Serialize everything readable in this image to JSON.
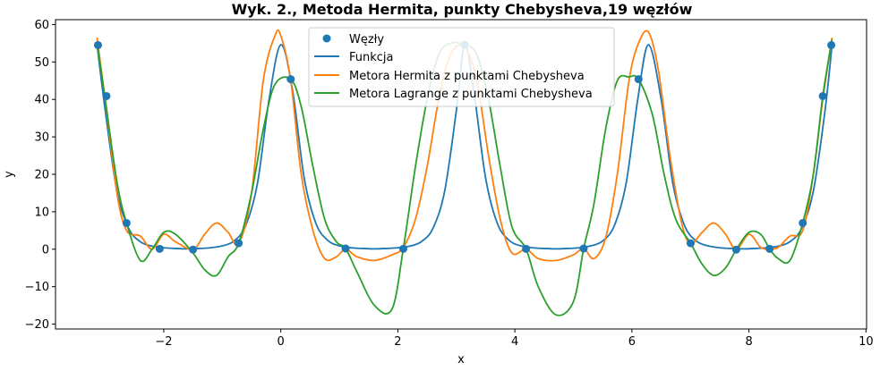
{
  "chart_data": {
    "type": "line",
    "title": "Wyk. 2., Metoda Hermita, punkty Chebysheva,19 węzłów",
    "xlabel": "x",
    "ylabel": "y",
    "xlim": [
      -3.85,
      10.01
    ],
    "ylim": [
      -21.3,
      61.3
    ],
    "xticks": [
      -2,
      0,
      2,
      4,
      6,
      8,
      10
    ],
    "yticks": [
      -20,
      -10,
      0,
      10,
      20,
      30,
      40,
      50,
      60
    ],
    "grid": false,
    "legend_position": "upper center",
    "colors": {
      "nodes": "#1f77b4",
      "funkcja": "#1f77b4",
      "hermite": "#ff7f0e",
      "lagrange": "#2ca02c"
    },
    "scatter": {
      "name": "Węzły",
      "x": [
        -3.124,
        -2.979,
        -2.636,
        -2.07,
        -1.5,
        -0.72,
        0.17,
        1.107,
        2.093,
        3.142,
        4.19,
        5.176,
        6.113,
        7.003,
        7.783,
        8.353,
        8.919,
        9.262,
        9.407
      ],
      "y": [
        54.5,
        40.9,
        7.0,
        0.1,
        -0.1,
        1.6,
        45.4,
        0.2,
        0.1,
        54.6,
        0.1,
        0.2,
        45.4,
        1.6,
        -0.1,
        0.1,
        7.0,
        40.9,
        54.5
      ]
    },
    "series": [
      {
        "name": "Funkcja",
        "x": [
          -3.14,
          -3.0,
          -2.8,
          -2.6,
          -2.4,
          -2.2,
          -2.0,
          -1.8,
          -1.6,
          -1.4,
          -1.2,
          -1.0,
          -0.8,
          -0.6,
          -0.4,
          -0.2,
          0.0,
          0.2,
          0.4,
          0.6,
          0.8,
          1.0,
          1.2,
          1.4,
          1.6,
          1.8,
          2.0,
          2.2,
          2.4,
          2.6,
          2.8,
          3.0,
          3.142,
          3.3,
          3.5,
          3.7,
          3.9,
          4.1,
          4.3,
          4.5,
          4.7,
          4.9,
          5.1,
          5.3,
          5.5,
          5.7,
          5.9,
          6.1,
          6.283,
          6.5,
          6.7,
          6.9,
          7.1,
          7.3,
          7.5,
          7.7,
          7.9,
          8.1,
          8.3,
          8.5,
          8.7,
          8.9,
          9.1,
          9.3,
          9.42
        ],
        "y": [
          54.6,
          37.0,
          15.5,
          5.6,
          2.0,
          0.8,
          0.4,
          0.2,
          0.1,
          0.2,
          0.4,
          0.9,
          2.2,
          6.3,
          17.5,
          40.0,
          54.6,
          42.5,
          19.0,
          6.9,
          2.4,
          0.9,
          0.4,
          0.2,
          0.1,
          0.2,
          0.4,
          0.8,
          2.0,
          5.6,
          15.5,
          37.0,
          54.6,
          42.0,
          19.0,
          6.9,
          2.4,
          0.9,
          0.4,
          0.2,
          0.1,
          0.2,
          0.4,
          0.9,
          2.2,
          6.3,
          17.5,
          40.0,
          54.6,
          40.0,
          17.5,
          6.3,
          2.2,
          0.9,
          0.4,
          0.2,
          0.1,
          0.2,
          0.4,
          0.8,
          2.0,
          5.6,
          15.5,
          37.0,
          54.6
        ]
      },
      {
        "name": "Metora Hermita z punktami Chebysheva",
        "x": [
          -3.14,
          -3.0,
          -2.8,
          -2.636,
          -2.4,
          -2.2,
          -2.0,
          -1.8,
          -1.5,
          -1.3,
          -1.1,
          -0.9,
          -0.72,
          -0.5,
          -0.3,
          -0.1,
          0.0,
          0.17,
          0.35,
          0.55,
          0.75,
          0.95,
          1.107,
          1.3,
          1.6,
          1.9,
          2.093,
          2.3,
          2.5,
          2.7,
          2.9,
          3.142,
          3.35,
          3.55,
          3.75,
          3.95,
          4.19,
          4.4,
          4.7,
          5.0,
          5.176,
          5.35,
          5.55,
          5.75,
          5.95,
          6.113,
          6.283,
          6.45,
          6.65,
          6.85,
          7.003,
          7.2,
          7.4,
          7.6,
          7.783,
          8.0,
          8.2,
          8.353,
          8.5,
          8.7,
          8.919,
          9.1,
          9.262,
          9.42
        ],
        "y": [
          56.5,
          40.0,
          15.0,
          5.0,
          3.5,
          0.0,
          4.0,
          2.0,
          0.0,
          4.0,
          7.0,
          4.5,
          1.5,
          15.0,
          45.0,
          57.0,
          57.0,
          45.0,
          20.0,
          5.0,
          -2.5,
          -2.0,
          0.0,
          -2.0,
          -3.0,
          -1.5,
          0.5,
          8.0,
          22.0,
          40.0,
          52.0,
          54.0,
          45.0,
          25.0,
          8.0,
          -1.0,
          0.0,
          -2.5,
          -3.0,
          -1.5,
          0.2,
          -2.5,
          3.0,
          20.0,
          45.0,
          55.0,
          58.0,
          48.0,
          25.0,
          7.0,
          1.5,
          4.5,
          7.0,
          4.0,
          -0.1,
          4.0,
          0.5,
          0.1,
          0.5,
          3.5,
          5.0,
          20.0,
          40.0,
          56.5
        ]
      },
      {
        "name": "Metora Lagrange z punktami Chebysheva",
        "x": [
          -3.14,
          -3.0,
          -2.8,
          -2.636,
          -2.4,
          -2.2,
          -2.0,
          -1.8,
          -1.5,
          -1.3,
          -1.1,
          -0.9,
          -0.72,
          -0.5,
          -0.3,
          -0.1,
          0.17,
          0.35,
          0.55,
          0.75,
          0.95,
          1.107,
          1.3,
          1.6,
          1.9,
          2.093,
          2.3,
          2.5,
          2.7,
          2.9,
          3.142,
          3.35,
          3.55,
          3.75,
          3.95,
          4.19,
          4.4,
          4.7,
          5.0,
          5.176,
          5.35,
          5.55,
          5.75,
          5.95,
          6.113,
          6.35,
          6.55,
          6.75,
          7.003,
          7.2,
          7.4,
          7.6,
          7.783,
          8.0,
          8.2,
          8.353,
          8.5,
          8.7,
          8.919,
          9.1,
          9.262,
          9.42
        ],
        "y": [
          55.0,
          40.0,
          18.0,
          7.0,
          -3.0,
          0.0,
          4.5,
          4.0,
          -1.0,
          -5.5,
          -7.0,
          -2.0,
          1.6,
          15.0,
          32.0,
          44.0,
          45.4,
          38.0,
          22.0,
          8.0,
          2.0,
          0.2,
          -6.0,
          -15.0,
          -16.0,
          0.1,
          22.0,
          40.0,
          52.0,
          55.0,
          54.6,
          52.0,
          40.0,
          22.0,
          6.0,
          0.1,
          -10.0,
          -17.5,
          -14.0,
          0.2,
          12.0,
          32.0,
          45.0,
          46.0,
          45.4,
          36.0,
          20.0,
          8.0,
          1.6,
          -4.0,
          -7.0,
          -5.0,
          -0.1,
          4.5,
          4.0,
          0.1,
          -2.5,
          -3.0,
          7.0,
          20.0,
          40.9,
          56.0
        ]
      }
    ]
  }
}
